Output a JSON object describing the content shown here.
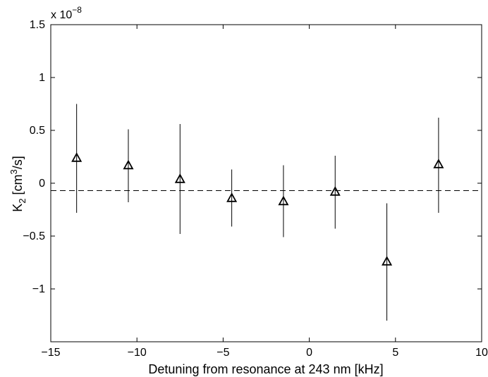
{
  "chart_data": {
    "type": "scatter",
    "xlabel": "Detuning from resonance at 243 nm [kHz]",
    "ylabel": {
      "base": "K",
      "subscript": "2",
      "unit_prefix": " [cm",
      "superscript": "3",
      "unit_suffix": "/s]"
    },
    "y_multiplier": {
      "prefix": "x 10",
      "exponent": "−8"
    },
    "xlim": [
      -15,
      10
    ],
    "ylim": [
      -1.5,
      1.5
    ],
    "x_ticks": [
      -15,
      -10,
      -5,
      0,
      5,
      10
    ],
    "x_tick_labels": [
      "−15",
      "−10",
      "−5",
      "0",
      "5",
      "10"
    ],
    "y_ticks": [
      -1,
      -0.5,
      0,
      0.5,
      1,
      1.5
    ],
    "y_tick_labels": [
      "−1",
      "−0.5",
      "0",
      "0.5",
      "1",
      "1.5"
    ],
    "marker": "triangle",
    "grid": false,
    "reference_line": {
      "y": -0.07,
      "style": "dashed"
    },
    "points": [
      {
        "x": -13.5,
        "y": 0.24,
        "err_low": -0.28,
        "err_high": 0.75
      },
      {
        "x": -10.5,
        "y": 0.17,
        "err_low": -0.18,
        "err_high": 0.51
      },
      {
        "x": -7.5,
        "y": 0.04,
        "err_low": -0.48,
        "err_high": 0.56
      },
      {
        "x": -4.5,
        "y": -0.14,
        "err_low": -0.41,
        "err_high": 0.13
      },
      {
        "x": -1.5,
        "y": -0.17,
        "err_low": -0.51,
        "err_high": 0.17
      },
      {
        "x": 1.5,
        "y": -0.08,
        "err_low": -0.43,
        "err_high": 0.26
      },
      {
        "x": 4.5,
        "y": -0.74,
        "err_low": -1.3,
        "err_high": -0.19
      },
      {
        "x": 7.5,
        "y": 0.18,
        "err_low": -0.28,
        "err_high": 0.62
      }
    ]
  }
}
